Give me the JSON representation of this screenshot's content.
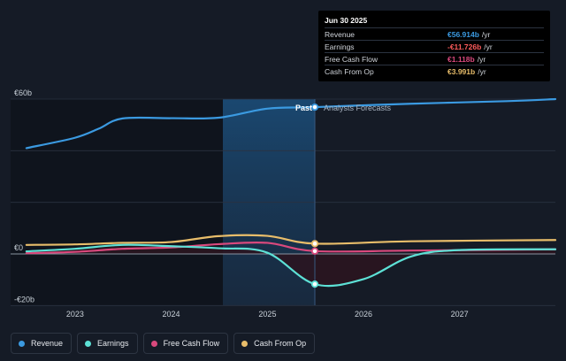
{
  "chart_data": {
    "type": "line",
    "y_axis": {
      "ticks": [
        "€60b",
        "€0",
        "-€20b"
      ],
      "min": -20,
      "max": 60,
      "unit": "€b"
    },
    "x_axis": {
      "ticks": [
        "2023",
        "2024",
        "2025",
        "2026",
        "2027"
      ],
      "range": [
        "2022-05-01",
        "2027-12-31"
      ]
    },
    "divider": {
      "date": "2025-06-30",
      "past_label": "Past",
      "forecast_label": "Analysts Forecasts"
    },
    "series": [
      {
        "name": "Revenue",
        "color": "#3b9ae1",
        "points": [
          [
            "2022-06-30",
            41
          ],
          [
            "2022-12-31",
            45
          ],
          [
            "2023-03-31",
            48.5
          ],
          [
            "2023-06-30",
            52.5
          ],
          [
            "2023-12-31",
            52.6
          ],
          [
            "2024-06-30",
            52.8
          ],
          [
            "2024-12-31",
            56.3
          ],
          [
            "2025-06-30",
            56.9
          ],
          [
            "2026-06-30",
            58.2
          ],
          [
            "2027-06-30",
            59.2
          ],
          [
            "2027-12-31",
            60.0
          ]
        ]
      },
      {
        "name": "Earnings",
        "color": "#5de1d6",
        "points": [
          [
            "2022-06-30",
            1.0
          ],
          [
            "2022-12-31",
            2.0
          ],
          [
            "2023-06-30",
            3.5
          ],
          [
            "2023-12-31",
            3.0
          ],
          [
            "2024-06-30",
            2.2
          ],
          [
            "2024-12-31",
            0.5
          ],
          [
            "2025-06-30",
            -11.7
          ],
          [
            "2025-12-31",
            -9.8
          ],
          [
            "2026-06-30",
            -1.0
          ],
          [
            "2026-12-31",
            1.5
          ],
          [
            "2027-12-31",
            1.8
          ]
        ]
      },
      {
        "name": "Free Cash Flow",
        "color": "#d9497d",
        "points": [
          [
            "2022-06-30",
            0.3
          ],
          [
            "2022-12-31",
            0.8
          ],
          [
            "2023-06-30",
            2.0
          ],
          [
            "2023-12-31",
            2.5
          ],
          [
            "2024-06-30",
            3.8
          ],
          [
            "2024-12-31",
            4.3
          ],
          [
            "2025-06-30",
            1.1
          ],
          [
            "2026-06-30",
            1.3
          ],
          [
            "2027-12-31",
            1.8
          ]
        ]
      },
      {
        "name": "Cash From Op",
        "color": "#e8bd6a",
        "points": [
          [
            "2022-06-30",
            3.5
          ],
          [
            "2022-12-31",
            3.7
          ],
          [
            "2023-06-30",
            4.3
          ],
          [
            "2023-12-31",
            4.6
          ],
          [
            "2024-06-30",
            6.9
          ],
          [
            "2024-12-31",
            7.0
          ],
          [
            "2025-06-30",
            4.0
          ],
          [
            "2026-06-30",
            4.9
          ],
          [
            "2027-12-31",
            5.4
          ]
        ]
      }
    ],
    "tooltip": {
      "date": "Jun 30 2025",
      "rows": [
        {
          "name": "Revenue",
          "value": "€56.914b",
          "unit": "/yr",
          "color": "#3b9ae1"
        },
        {
          "name": "Earnings",
          "value": "-€11.726b",
          "unit": "/yr",
          "color": "#ff5c5c"
        },
        {
          "name": "Free Cash Flow",
          "value": "€1.118b",
          "unit": "/yr",
          "color": "#d9497d"
        },
        {
          "name": "Cash From Op",
          "value": "€3.991b",
          "unit": "/yr",
          "color": "#e8bd6a"
        }
      ]
    },
    "grid": true,
    "legend_position": "bottom"
  }
}
